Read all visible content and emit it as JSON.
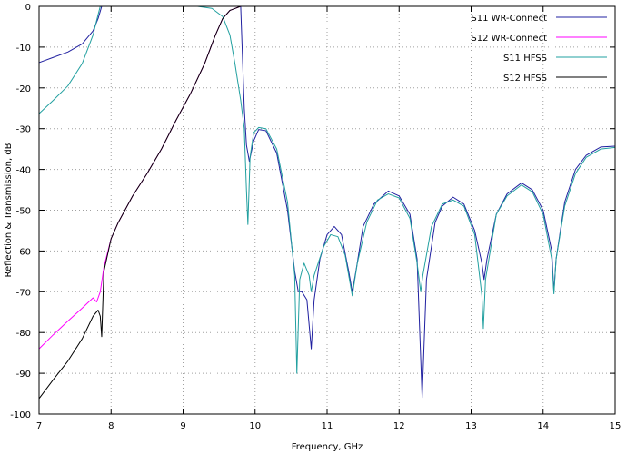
{
  "chart_data": {
    "type": "line",
    "xlabel": "Frequency, GHz",
    "ylabel": "Reflection & Transmission, dB",
    "xlim": [
      7,
      15
    ],
    "ylim": [
      -100,
      0
    ],
    "xticks": [
      7,
      8,
      9,
      10,
      11,
      12,
      13,
      14,
      15
    ],
    "yticks": [
      0,
      -10,
      -20,
      -30,
      -40,
      -50,
      -60,
      -70,
      -80,
      -90,
      -100
    ],
    "grid": "dotted",
    "legend_position": "top-right",
    "series": [
      {
        "name": "S11 WR-Connect",
        "color": "#2020a0",
        "points": [
          [
            7.0,
            -13.8
          ],
          [
            7.2,
            -12.5
          ],
          [
            7.4,
            -11.2
          ],
          [
            7.6,
            -9.2
          ],
          [
            7.75,
            -6.0
          ],
          [
            7.82,
            -3.0
          ],
          [
            7.87,
            0
          ],
          [
            9.8,
            0
          ],
          [
            9.82,
            -10
          ],
          [
            9.85,
            -25
          ],
          [
            9.88,
            -34
          ],
          [
            9.92,
            -38
          ],
          [
            9.98,
            -33
          ],
          [
            10.05,
            -30.2
          ],
          [
            10.15,
            -30.5
          ],
          [
            10.3,
            -36
          ],
          [
            10.45,
            -50
          ],
          [
            10.55,
            -65
          ],
          [
            10.6,
            -70
          ],
          [
            10.65,
            -70
          ],
          [
            10.72,
            -72
          ],
          [
            10.78,
            -84
          ],
          [
            10.82,
            -72
          ],
          [
            10.9,
            -62
          ],
          [
            11.0,
            -56
          ],
          [
            11.1,
            -54
          ],
          [
            11.2,
            -56
          ],
          [
            11.3,
            -65
          ],
          [
            11.35,
            -70
          ],
          [
            11.4,
            -65
          ],
          [
            11.5,
            -54
          ],
          [
            11.65,
            -48.5
          ],
          [
            11.85,
            -45.3
          ],
          [
            12.0,
            -46.5
          ],
          [
            12.15,
            -51
          ],
          [
            12.25,
            -62
          ],
          [
            12.32,
            -96
          ],
          [
            12.38,
            -67
          ],
          [
            12.5,
            -53
          ],
          [
            12.6,
            -49
          ],
          [
            12.75,
            -46.8
          ],
          [
            12.9,
            -48.5
          ],
          [
            13.05,
            -55
          ],
          [
            13.15,
            -63
          ],
          [
            13.18,
            -67
          ],
          [
            13.22,
            -62
          ],
          [
            13.35,
            -51
          ],
          [
            13.5,
            -46
          ],
          [
            13.7,
            -43.3
          ],
          [
            13.85,
            -45
          ],
          [
            14.0,
            -50
          ],
          [
            14.12,
            -60
          ],
          [
            14.15,
            -70
          ],
          [
            14.18,
            -62
          ],
          [
            14.3,
            -48
          ],
          [
            14.45,
            -40
          ],
          [
            14.6,
            -36.5
          ],
          [
            14.8,
            -34.5
          ],
          [
            15.0,
            -34.3
          ]
        ]
      },
      {
        "name": "S12 WR-Connect",
        "color": "#ff00ff",
        "points": [
          [
            7.0,
            -84
          ],
          [
            7.2,
            -80.5
          ],
          [
            7.4,
            -77.2
          ],
          [
            7.6,
            -74
          ],
          [
            7.75,
            -71.5
          ],
          [
            7.8,
            -72.5
          ],
          [
            7.85,
            -70
          ],
          [
            7.9,
            -64
          ],
          [
            8.0,
            -57
          ],
          [
            8.1,
            -53
          ],
          [
            8.3,
            -46.5
          ],
          [
            8.5,
            -41
          ],
          [
            8.7,
            -35
          ],
          [
            8.9,
            -28
          ],
          [
            9.1,
            -21.5
          ],
          [
            9.3,
            -14
          ],
          [
            9.45,
            -7
          ],
          [
            9.55,
            -3
          ],
          [
            9.65,
            -1
          ],
          [
            9.8,
            0
          ],
          [
            10.0,
            0
          ]
        ]
      },
      {
        "name": "S11 HFSS",
        "color": "#22a0a0",
        "points": [
          [
            7.0,
            -26.3
          ],
          [
            7.2,
            -23
          ],
          [
            7.4,
            -19.5
          ],
          [
            7.6,
            -14
          ],
          [
            7.75,
            -7
          ],
          [
            7.82,
            -2
          ],
          [
            7.85,
            0
          ],
          [
            9.2,
            0
          ],
          [
            9.4,
            -0.5
          ],
          [
            9.55,
            -2.5
          ],
          [
            9.65,
            -7
          ],
          [
            9.72,
            -14
          ],
          [
            9.8,
            -23
          ],
          [
            9.85,
            -30
          ],
          [
            9.88,
            -45
          ],
          [
            9.9,
            -53.5
          ],
          [
            9.93,
            -37
          ],
          [
            9.98,
            -31
          ],
          [
            10.05,
            -29.7
          ],
          [
            10.15,
            -30
          ],
          [
            10.3,
            -35
          ],
          [
            10.45,
            -48
          ],
          [
            10.55,
            -66
          ],
          [
            10.58,
            -90
          ],
          [
            10.62,
            -67
          ],
          [
            10.68,
            -63
          ],
          [
            10.75,
            -66
          ],
          [
            10.78,
            -70
          ],
          [
            10.82,
            -66
          ],
          [
            10.95,
            -59
          ],
          [
            11.05,
            -56
          ],
          [
            11.15,
            -56.5
          ],
          [
            11.25,
            -61
          ],
          [
            11.35,
            -71
          ],
          [
            11.42,
            -63
          ],
          [
            11.55,
            -53
          ],
          [
            11.7,
            -47.5
          ],
          [
            11.85,
            -46
          ],
          [
            12.0,
            -47
          ],
          [
            12.15,
            -52
          ],
          [
            12.25,
            -63
          ],
          [
            12.3,
            -70
          ],
          [
            12.33,
            -66
          ],
          [
            12.45,
            -54
          ],
          [
            12.6,
            -48.5
          ],
          [
            12.75,
            -47.5
          ],
          [
            12.9,
            -49
          ],
          [
            13.05,
            -56
          ],
          [
            13.15,
            -71
          ],
          [
            13.17,
            -79
          ],
          [
            13.2,
            -67
          ],
          [
            13.35,
            -51
          ],
          [
            13.5,
            -46.5
          ],
          [
            13.7,
            -43.8
          ],
          [
            13.85,
            -45.5
          ],
          [
            14.0,
            -51
          ],
          [
            14.12,
            -62
          ],
          [
            14.15,
            -70.5
          ],
          [
            14.18,
            -62
          ],
          [
            14.3,
            -49
          ],
          [
            14.45,
            -41
          ],
          [
            14.6,
            -37
          ],
          [
            14.8,
            -35
          ],
          [
            15.0,
            -34.6
          ]
        ]
      },
      {
        "name": "S12 HFSS",
        "color": "#000000",
        "points": [
          [
            7.0,
            -96.2
          ],
          [
            7.2,
            -91.5
          ],
          [
            7.4,
            -87
          ],
          [
            7.6,
            -81.5
          ],
          [
            7.75,
            -76
          ],
          [
            7.82,
            -74.5
          ],
          [
            7.85,
            -76
          ],
          [
            7.87,
            -81
          ],
          [
            7.9,
            -65
          ],
          [
            8.0,
            -57
          ],
          [
            8.1,
            -53
          ],
          [
            8.3,
            -46.5
          ],
          [
            8.5,
            -41
          ],
          [
            8.7,
            -35
          ],
          [
            8.9,
            -28
          ],
          [
            9.1,
            -21.5
          ],
          [
            9.3,
            -14
          ],
          [
            9.45,
            -7
          ],
          [
            9.55,
            -3
          ],
          [
            9.65,
            -1
          ],
          [
            9.8,
            0
          ],
          [
            10.0,
            0
          ]
        ]
      }
    ]
  }
}
